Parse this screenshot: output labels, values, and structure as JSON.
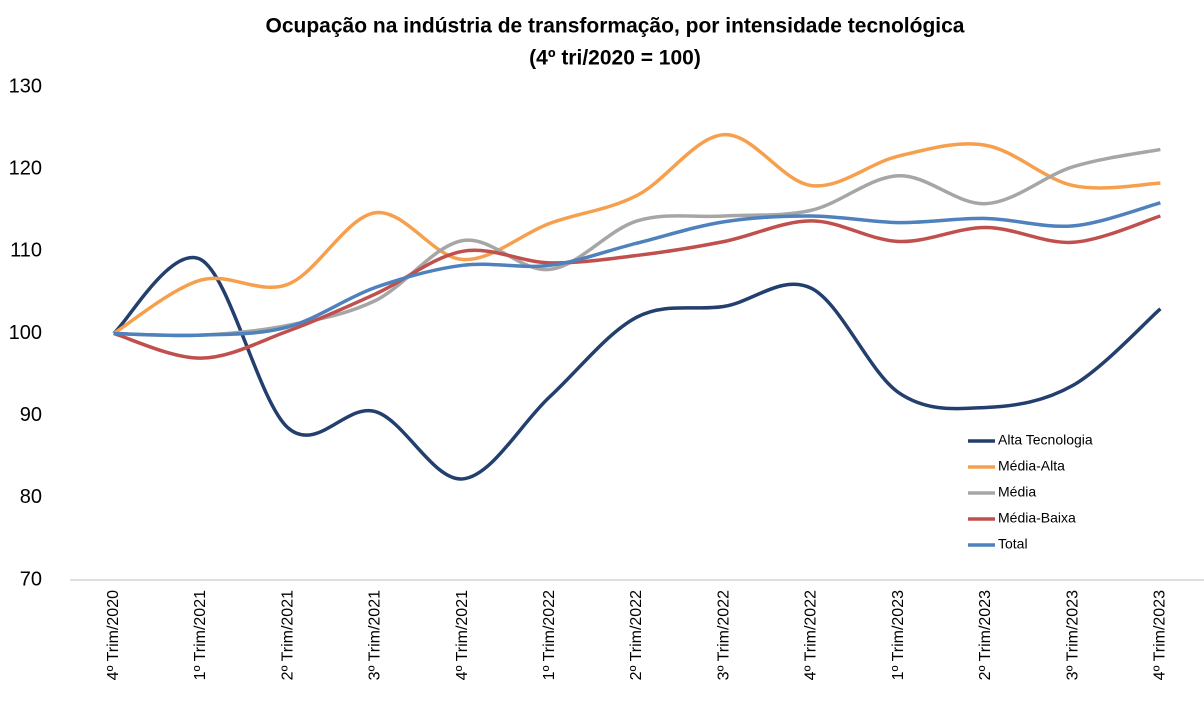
{
  "chart_data": {
    "type": "line",
    "title": "Ocupação na indústria de transformação, por intensidade tecnológica",
    "subtitle": "(4º tri/2020 = 100)",
    "categories": [
      "4º Trim/2020",
      "1º Trim/2021",
      "2º Trim/2021",
      "3º Trim/2021",
      "4º Trim/2021",
      "1º Trim/2022",
      "2º Trim/2022",
      "3º Trim/2022",
      "4º Trim/2022",
      "1º Trim/2023",
      "2º Trim/2023",
      "3º Trim/2023",
      "4º Trim/2023"
    ],
    "series": [
      {
        "name": "Alta Tecnologia",
        "color": "#233f6e",
        "values": [
          100,
          109,
          88.5,
          90.5,
          82.3,
          92.3,
          102,
          103.3,
          105.5,
          92.8,
          91,
          93.7,
          103
        ]
      },
      {
        "name": "Média-Alta",
        "color": "#f6a04d",
        "values": [
          100,
          106.5,
          106,
          114.7,
          109,
          113.4,
          116.8,
          124.2,
          118,
          121.6,
          122.9,
          118,
          118.3
        ]
      },
      {
        "name": "Média",
        "color": "#a6a6a6",
        "values": [
          100,
          99.8,
          101,
          104,
          111.3,
          107.8,
          113.7,
          114.3,
          115,
          119.2,
          115.8,
          120.3,
          122.4
        ]
      },
      {
        "name": "Média-Baixa",
        "color": "#c0504d",
        "values": [
          100,
          97,
          100.3,
          104.8,
          110,
          108.6,
          109.5,
          111.2,
          113.7,
          111.2,
          112.9,
          111.1,
          114.3
        ]
      },
      {
        "name": "Total",
        "color": "#4f81bd",
        "values": [
          100,
          99.8,
          100.8,
          105.6,
          108.3,
          108.3,
          111,
          113.6,
          114.3,
          113.5,
          114,
          113.1,
          115.9
        ]
      }
    ],
    "ylim": [
      70,
      130
    ],
    "yticks": [
      70,
      80,
      90,
      100,
      110,
      120,
      130
    ],
    "legend": "lower right",
    "smooth": true
  }
}
